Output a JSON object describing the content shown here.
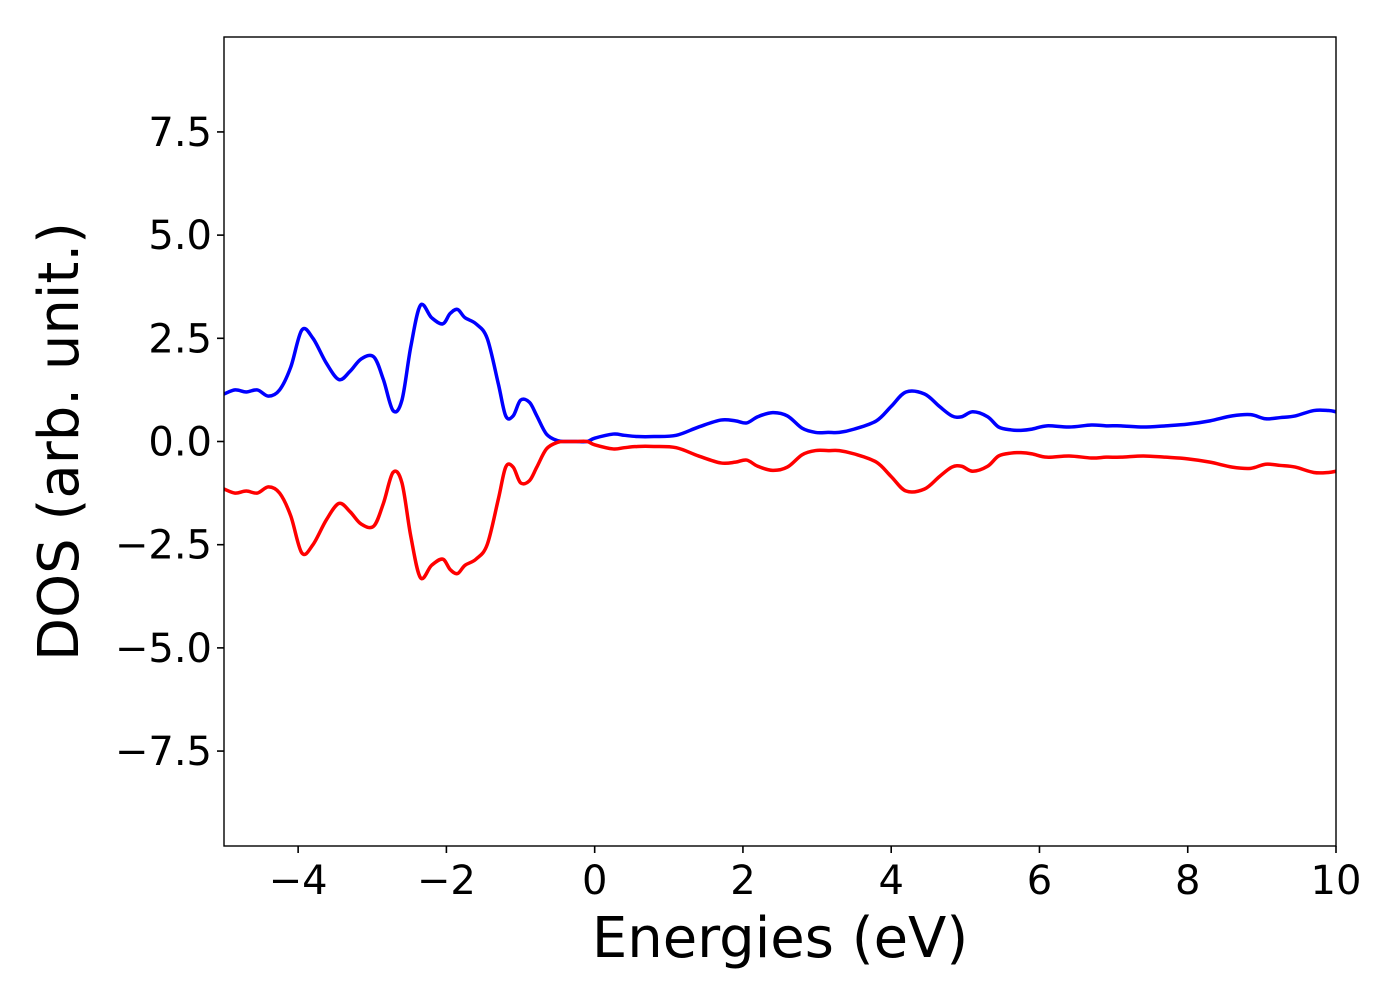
{
  "chart_data": {
    "type": "line",
    "title": "",
    "xlabel": "Energies (eV)",
    "ylabel": "DOS (arb. unit.)",
    "xlim": [
      -5,
      10
    ],
    "ylim": [
      -9.8,
      9.8
    ],
    "xticks": [
      -4,
      -2,
      0,
      2,
      4,
      6,
      8,
      10
    ],
    "xtick_labels": [
      "−4",
      "−2",
      "0",
      "2",
      "4",
      "6",
      "8",
      "10"
    ],
    "yticks": [
      7.5,
      5.0,
      2.5,
      0.0,
      -2.5,
      -5.0,
      -7.5
    ],
    "ytick_labels": [
      "7.5",
      "5.0",
      "2.5",
      "0.0",
      "−2.5",
      "−5.0",
      "−7.5"
    ],
    "grid": false,
    "legend": false,
    "series": [
      {
        "color": "#0000ff",
        "x": [
          -5.0,
          -4.85,
          -4.7,
          -4.55,
          -4.4,
          -4.25,
          -4.1,
          -3.95,
          -3.8,
          -3.62,
          -3.45,
          -3.3,
          -3.15,
          -2.98,
          -2.85,
          -2.72,
          -2.6,
          -2.48,
          -2.35,
          -2.2,
          -2.05,
          -1.95,
          -1.85,
          -1.75,
          -1.6,
          -1.45,
          -1.3,
          -1.2,
          -1.1,
          -1.0,
          -0.88,
          -0.78,
          -0.65,
          -0.5,
          -0.38,
          -0.25,
          -0.1,
          0.0,
          0.25,
          0.4,
          0.58,
          0.8,
          1.1,
          1.4,
          1.7,
          1.9,
          2.05,
          2.2,
          2.4,
          2.6,
          2.8,
          2.98,
          3.15,
          3.3,
          3.5,
          3.8,
          4.0,
          4.2,
          4.45,
          4.65,
          4.82,
          4.95,
          5.1,
          5.3,
          5.45,
          5.62,
          5.75,
          5.9,
          6.1,
          6.4,
          6.7,
          6.9,
          7.1,
          7.4,
          7.7,
          8.0,
          8.3,
          8.6,
          8.85,
          9.05,
          9.25,
          9.45,
          9.7,
          9.9,
          10.0
        ],
        "y": [
          1.15,
          1.25,
          1.2,
          1.25,
          1.1,
          1.25,
          1.8,
          2.7,
          2.5,
          1.9,
          1.5,
          1.7,
          2.0,
          2.05,
          1.5,
          0.75,
          1.0,
          2.3,
          3.3,
          3.0,
          2.85,
          3.1,
          3.2,
          3.0,
          2.85,
          2.5,
          1.4,
          0.62,
          0.62,
          1.0,
          0.95,
          0.62,
          0.18,
          0.02,
          0.0,
          0.0,
          0.0,
          0.08,
          0.18,
          0.15,
          0.12,
          0.12,
          0.15,
          0.35,
          0.52,
          0.5,
          0.45,
          0.6,
          0.7,
          0.62,
          0.32,
          0.22,
          0.22,
          0.22,
          0.3,
          0.5,
          0.85,
          1.2,
          1.15,
          0.85,
          0.62,
          0.6,
          0.72,
          0.6,
          0.35,
          0.28,
          0.27,
          0.3,
          0.38,
          0.35,
          0.4,
          0.38,
          0.38,
          0.35,
          0.38,
          0.42,
          0.5,
          0.62,
          0.65,
          0.55,
          0.58,
          0.62,
          0.75,
          0.75,
          0.72
        ]
      },
      {
        "color": "#ff0000",
        "x": [
          -5.0,
          -4.85,
          -4.7,
          -4.55,
          -4.4,
          -4.25,
          -4.1,
          -3.95,
          -3.8,
          -3.62,
          -3.45,
          -3.3,
          -3.15,
          -2.98,
          -2.85,
          -2.72,
          -2.6,
          -2.48,
          -2.35,
          -2.2,
          -2.05,
          -1.95,
          -1.85,
          -1.75,
          -1.6,
          -1.45,
          -1.3,
          -1.2,
          -1.1,
          -1.0,
          -0.88,
          -0.78,
          -0.65,
          -0.5,
          -0.38,
          -0.25,
          -0.1,
          0.0,
          0.25,
          0.4,
          0.58,
          0.8,
          1.1,
          1.4,
          1.7,
          1.9,
          2.05,
          2.2,
          2.4,
          2.6,
          2.8,
          2.98,
          3.15,
          3.3,
          3.5,
          3.8,
          4.0,
          4.2,
          4.45,
          4.65,
          4.82,
          4.95,
          5.1,
          5.3,
          5.45,
          5.62,
          5.75,
          5.9,
          6.1,
          6.4,
          6.7,
          6.9,
          7.1,
          7.4,
          7.7,
          8.0,
          8.3,
          8.6,
          8.85,
          9.05,
          9.25,
          9.45,
          9.7,
          9.9,
          10.0
        ],
        "y": [
          -1.15,
          -1.25,
          -1.2,
          -1.25,
          -1.1,
          -1.25,
          -1.8,
          -2.7,
          -2.5,
          -1.9,
          -1.5,
          -1.7,
          -2.0,
          -2.05,
          -1.5,
          -0.75,
          -1.0,
          -2.3,
          -3.3,
          -3.0,
          -2.85,
          -3.1,
          -3.2,
          -3.0,
          -2.85,
          -2.5,
          -1.4,
          -0.62,
          -0.62,
          -1.0,
          -0.95,
          -0.62,
          -0.18,
          -0.02,
          0.0,
          0.0,
          0.0,
          -0.08,
          -0.18,
          -0.15,
          -0.12,
          -0.12,
          -0.15,
          -0.35,
          -0.52,
          -0.5,
          -0.45,
          -0.6,
          -0.7,
          -0.62,
          -0.32,
          -0.22,
          -0.22,
          -0.22,
          -0.3,
          -0.5,
          -0.85,
          -1.2,
          -1.15,
          -0.85,
          -0.62,
          -0.6,
          -0.72,
          -0.6,
          -0.35,
          -0.28,
          -0.27,
          -0.3,
          -0.38,
          -0.35,
          -0.4,
          -0.38,
          -0.38,
          -0.35,
          -0.38,
          -0.42,
          -0.5,
          -0.62,
          -0.65,
          -0.55,
          -0.58,
          -0.62,
          -0.75,
          -0.75,
          -0.72
        ]
      }
    ]
  }
}
